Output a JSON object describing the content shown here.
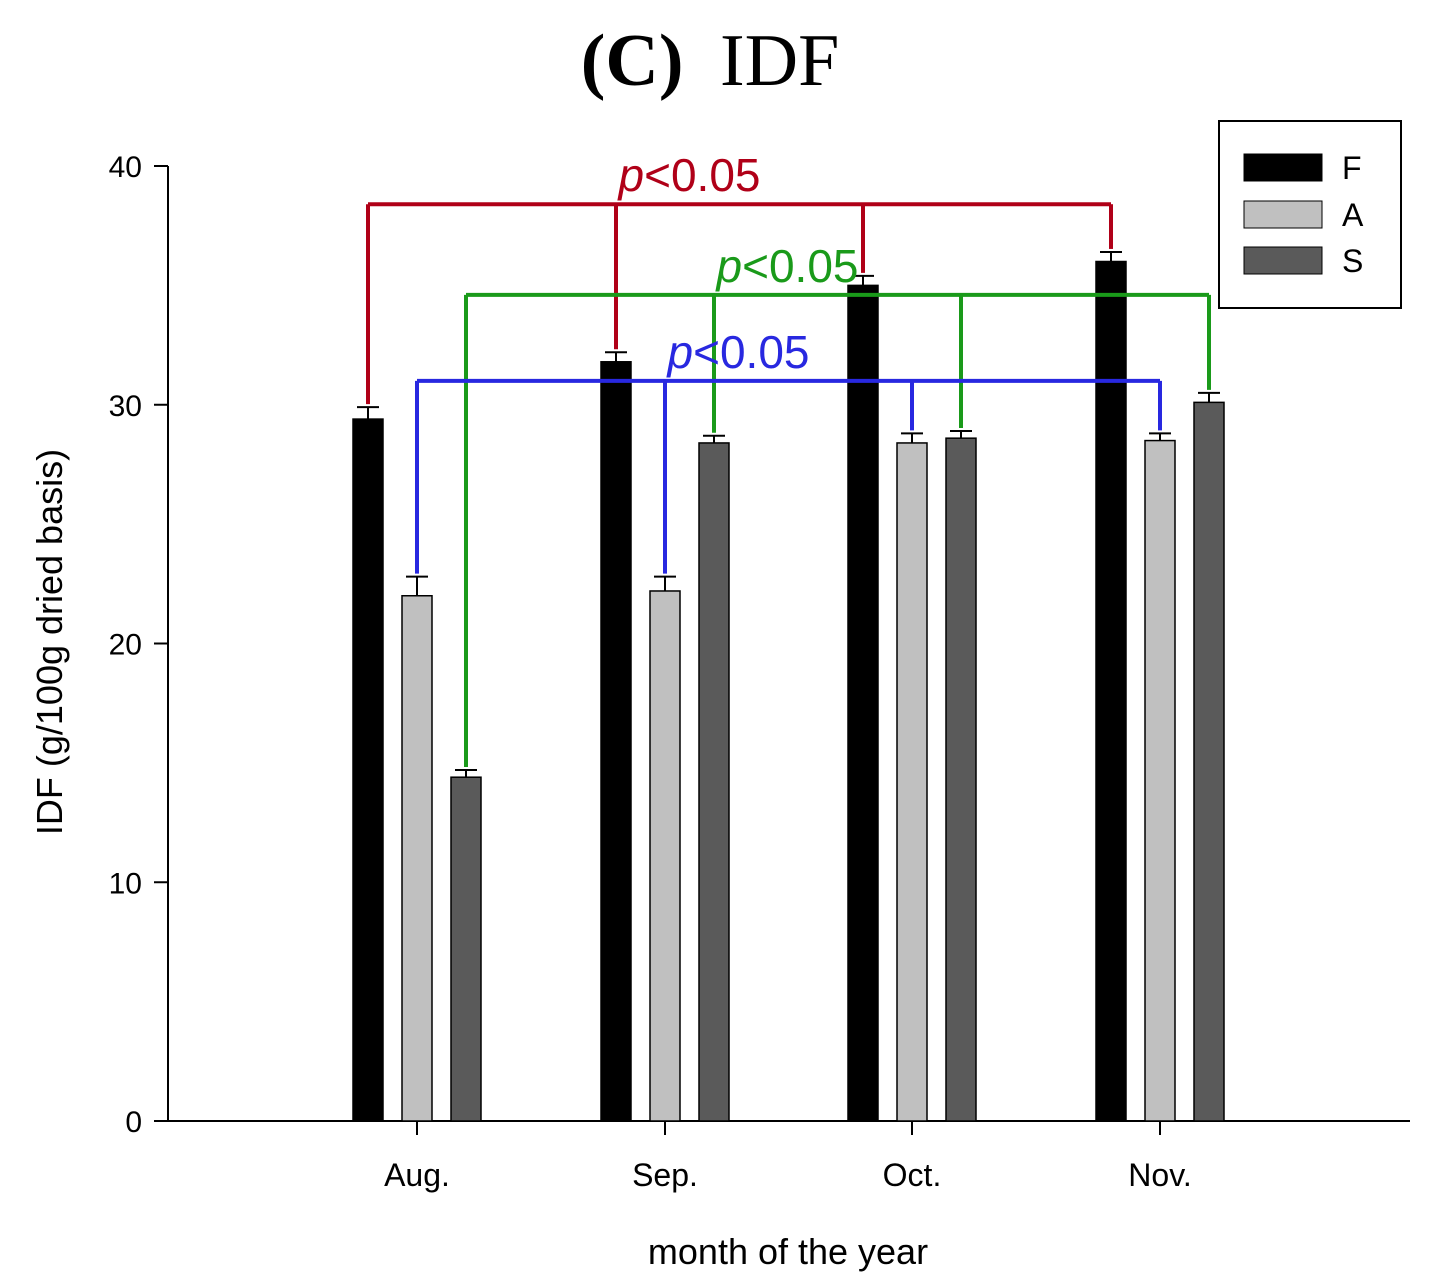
{
  "chart_data": {
    "type": "bar",
    "title_label": "(C)",
    "title_text": "IDF",
    "xlabel": "month of the year",
    "ylabel": "IDF (g/100g dried basis)",
    "ylim": [
      0,
      40
    ],
    "yticks": [
      0,
      10,
      20,
      30,
      40
    ],
    "categories": [
      "Aug.",
      "Sep.",
      "Oct.",
      "Nov."
    ],
    "series": [
      {
        "name": "F",
        "color": "#000000",
        "values": [
          29.4,
          31.8,
          35.0,
          36.0
        ],
        "errors": [
          0.5,
          0.4,
          0.4,
          0.4
        ]
      },
      {
        "name": "A",
        "color": "#c0c0c0",
        "values": [
          22.0,
          22.2,
          28.4,
          28.5
        ],
        "errors": [
          0.8,
          0.6,
          0.4,
          0.3
        ]
      },
      {
        "name": "S",
        "color": "#5a5a5a",
        "values": [
          14.4,
          28.4,
          28.6,
          30.1
        ],
        "errors": [
          0.3,
          0.3,
          0.3,
          0.4
        ]
      }
    ],
    "legend": {
      "position": "top-right",
      "entries": [
        "F",
        "A",
        "S"
      ]
    },
    "annotations": [
      {
        "text": "p<0.05",
        "p": "p",
        "rest": "<0.05",
        "color": "#b00018",
        "series": "F",
        "bracket_y": 38.4
      },
      {
        "text": "p<0.05",
        "p": "p",
        "rest": "<0.05",
        "color": "#1a9a1a",
        "series": "S",
        "bracket_y": 34.6
      },
      {
        "text": "p<0.05",
        "p": "p",
        "rest": "<0.05",
        "color": "#2828e0",
        "series": "A",
        "bracket_y": 31.0
      }
    ]
  }
}
